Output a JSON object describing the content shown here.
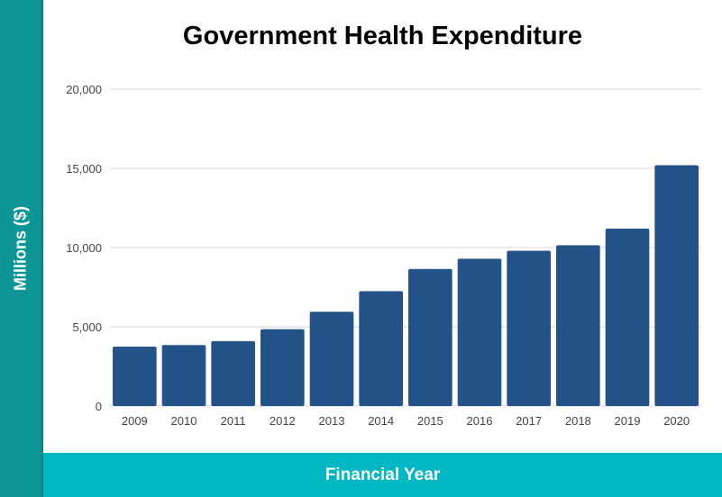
{
  "colors": {
    "bar": "#245389",
    "side_strip": "#0e9595",
    "bottom_strip": "#00b8c3",
    "grid": "#d4d4d4"
  },
  "chart_data": {
    "type": "bar",
    "title": "Government Health Expenditure",
    "xlabel": "Financial Year",
    "ylabel": "Millions ($)",
    "categories": [
      "2009",
      "2010",
      "2011",
      "2012",
      "2013",
      "2014",
      "2015",
      "2016",
      "2017",
      "2018",
      "2019",
      "2020"
    ],
    "values": [
      3750,
      3850,
      4100,
      4850,
      5950,
      7250,
      8650,
      9300,
      9800,
      10150,
      11200,
      15200
    ],
    "ylim": [
      0,
      20000
    ],
    "yticks": [
      0,
      5000,
      10000,
      15000,
      20000
    ],
    "ytick_labels": [
      "0",
      "5,000",
      "10,000",
      "15,000",
      "20,000"
    ],
    "grid": true
  }
}
